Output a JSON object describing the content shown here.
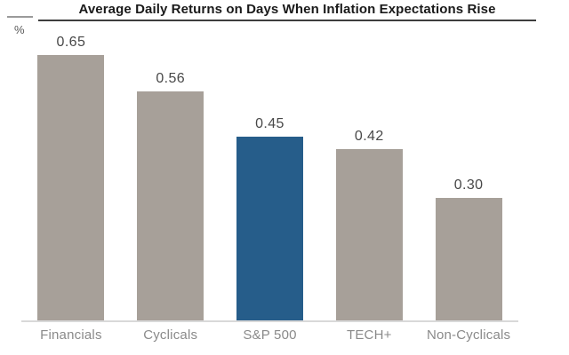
{
  "chart_data": {
    "type": "bar",
    "title": "Average Daily Returns on Days When Inflation Expectations Rise",
    "ylabel": "%",
    "xlabel": "",
    "categories": [
      "Financials",
      "Cyclicals",
      "S&P 500",
      "TECH+",
      "Non-Cyclicals"
    ],
    "values": [
      0.65,
      0.56,
      0.45,
      0.42,
      0.3
    ],
    "value_labels": [
      "0.65",
      "0.56",
      "0.45",
      "0.42",
      "0.30"
    ],
    "bar_colors": [
      "#a7a099",
      "#a7a099",
      "#265d8a",
      "#a7a099",
      "#a7a099"
    ],
    "highlighted_category": "S&P 500",
    "colors": {
      "bar_default": "#a7a099",
      "bar_highlight": "#265d8a",
      "title_text": "#1a1a1a",
      "value_text": "#484848",
      "category_text": "#8a8a8a",
      "baseline": "#d9d9d9"
    },
    "ylim": [
      0,
      0.78
    ],
    "grid": false,
    "legend": false,
    "data_labels": true
  }
}
